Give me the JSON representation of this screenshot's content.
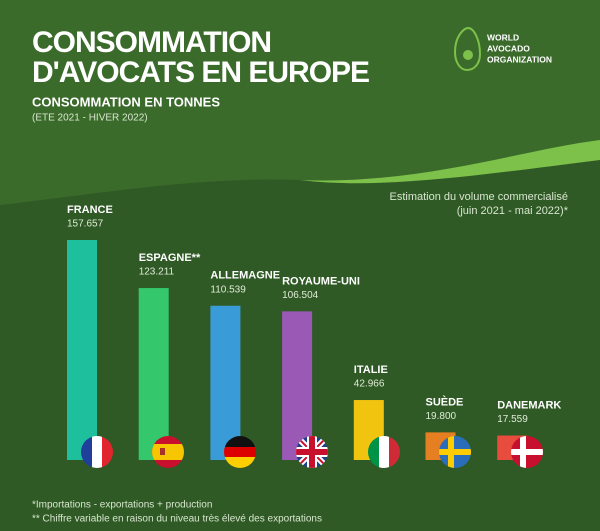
{
  "logo": [
    "WORLD",
    "AVOCADO",
    "ORGANIZATION"
  ],
  "chart_data": {
    "type": "bar",
    "title": [
      "CONSOMMATION",
      "D'AVOCATS EN EUROPE"
    ],
    "subtitle": "CONSOMMATION EN TONNES",
    "period": "(ETE 2021 - HIVER 2022)",
    "note": [
      "Estimation du volume commercialisé",
      "(juin 2021 - mai 2022)*"
    ],
    "footnotes": [
      "*Importations - exportations + production",
      "** Chiffre variable en raison du niveau très élevé des exportations"
    ],
    "categories": [
      "FRANCE",
      "ESPAGNE**",
      "ALLEMAGNE",
      "ROYAUME-UNI",
      "ITALIE",
      "SUÈDE",
      "DANEMARK"
    ],
    "values": [
      157657,
      123211,
      110539,
      106504,
      42966,
      19800,
      17559
    ],
    "value_labels": [
      "157.657",
      "123.211",
      "110.539",
      "106.504",
      "42.966",
      "19.800",
      "17.559"
    ],
    "colors": [
      "#1dbf9c",
      "#35c76b",
      "#3a9bd9",
      "#9b59b6",
      "#f1c40f",
      "#e67e22",
      "#e74c3c"
    ]
  }
}
